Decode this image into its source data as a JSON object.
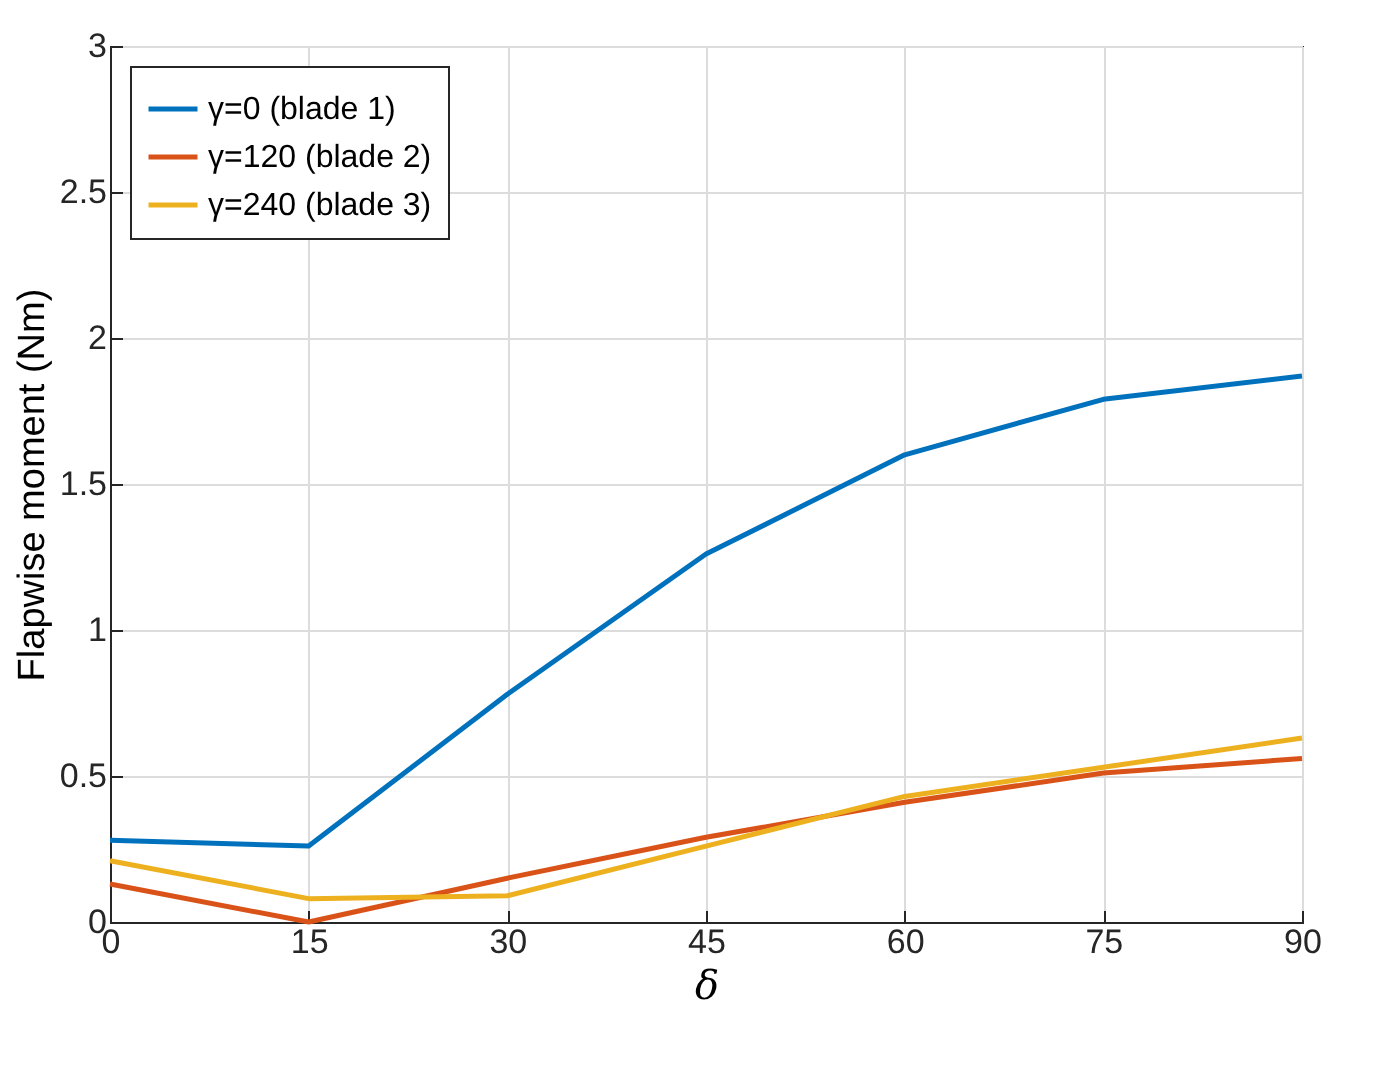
{
  "chart_data": {
    "type": "line",
    "xlabel": "δ",
    "ylabel": "Flapwise moment (Nm)",
    "x": [
      0,
      15,
      30,
      45,
      60,
      75,
      90
    ],
    "xlim": [
      0,
      90
    ],
    "xticks": [
      0,
      15,
      30,
      45,
      60,
      75,
      90
    ],
    "ylim": [
      0,
      3
    ],
    "yticks": [
      0,
      0.5,
      1,
      1.5,
      2,
      2.5,
      3
    ],
    "grid": true,
    "legend": "top left",
    "series": [
      {
        "name": "γ=0 (blade 1)",
        "color": "#0072bd",
        "values": [
          0.28,
          0.26,
          0.78,
          1.26,
          1.6,
          1.79,
          1.87
        ]
      },
      {
        "name": "γ=120 (blade 2)",
        "color": "#d95319",
        "values": [
          0.13,
          0.0,
          0.15,
          0.29,
          0.41,
          0.51,
          0.56
        ]
      },
      {
        "name": "γ=240 (blade 3)",
        "color": "#edb120",
        "values": [
          0.21,
          0.08,
          0.09,
          0.26,
          0.43,
          0.53,
          0.63
        ]
      }
    ]
  }
}
